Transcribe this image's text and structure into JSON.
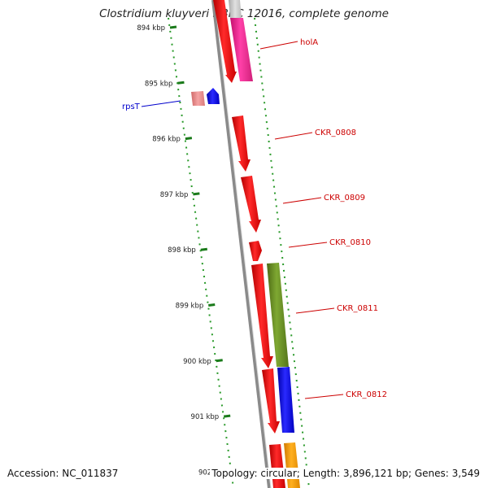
{
  "title": "Clostridium kluyveri NBRC 12016, complete genome",
  "footer": {
    "accession": "Accession: NC_011837",
    "summary": "Topology: circular; Length: 3,896,121 bp; Genes: 3,549"
  },
  "scale_ticks": [
    "894 kbp",
    "895 kbp",
    "896 kbp",
    "897 kbp",
    "898 kbp",
    "899 kbp",
    "900 kbp",
    "901 kbp",
    "902 kbp"
  ],
  "genes": [
    {
      "label": "holA",
      "color": "#cc0000"
    },
    {
      "label": "rpsT",
      "color": "#0000cc"
    },
    {
      "label": "CKR_0808",
      "color": "#cc0000"
    },
    {
      "label": "CKR_0809",
      "color": "#cc0000"
    },
    {
      "label": "CKR_0810",
      "color": "#cc0000"
    },
    {
      "label": "CKR_0811",
      "color": "#cc0000"
    },
    {
      "label": "CKR_0812",
      "color": "#cc0000"
    }
  ],
  "feature_colors": {
    "cds": "#ff0000",
    "rrna_pink": "#ff2a9a",
    "light": "#e88a8a",
    "olive": "#6b8e23",
    "blue": "#0000ee",
    "orange": "#ffa000",
    "backbone": "#8a8a8a",
    "ticks": "#1a8a1a"
  }
}
